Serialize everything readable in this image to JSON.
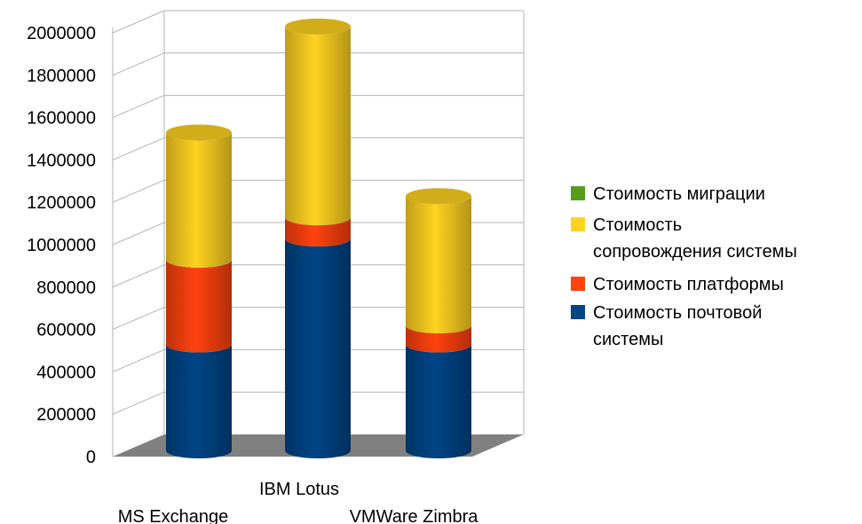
{
  "chart_data": {
    "type": "bar",
    "stacked": true,
    "style": "3d-cylinder",
    "categories": [
      "MS Exchange",
      "IBM Lotus",
      "VMWare Zimbra"
    ],
    "series": [
      {
        "name": "Стоимость почтовой системы",
        "color": "#004586",
        "values": [
          500000,
          1000000,
          500000
        ]
      },
      {
        "name": "Стоимость платформы",
        "color": "#ff420e",
        "values": [
          400000,
          100000,
          90000
        ]
      },
      {
        "name": "Стоимость сопровождения системы",
        "color": "#ffd320",
        "values": [
          600000,
          900000,
          610000
        ]
      },
      {
        "name": "Стоимость миграции",
        "color": "#579d1c",
        "values": [
          0,
          0,
          0
        ]
      }
    ],
    "legend_order": [
      3,
      2,
      1,
      0
    ],
    "legend_lines": [
      [
        "Стоимость миграции"
      ],
      [
        "Стоимость",
        "сопровождения системы"
      ],
      [
        "Стоимость платформы"
      ],
      [
        "Стоимость почтовой",
        "системы"
      ]
    ],
    "yticks": [
      "0",
      "200000",
      "400000",
      "600000",
      "800000",
      "1000000",
      "1200000",
      "1400000",
      "1600000",
      "1800000",
      "2000000"
    ],
    "ylim": [
      0,
      2000000
    ],
    "grid": true,
    "legend": "right",
    "title": "",
    "xlabel": "",
    "ylabel": ""
  }
}
